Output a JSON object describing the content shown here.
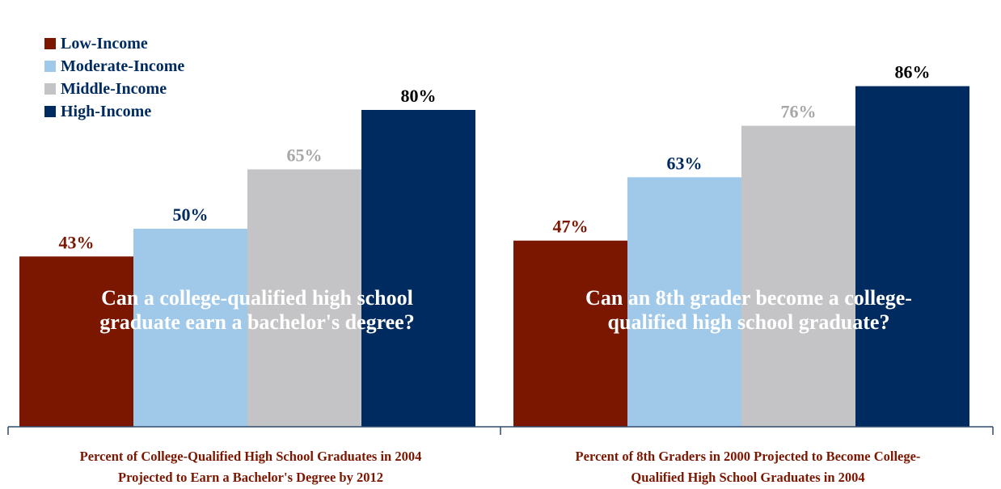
{
  "legend": {
    "entries": [
      {
        "label": "Low-Income",
        "color": "#7B1600"
      },
      {
        "label": "Moderate-Income",
        "color": "#9FC8E9"
      },
      {
        "label": "Middle-Income",
        "color": "#C4C4C6"
      },
      {
        "label": "High-Income",
        "color": "#002B60"
      }
    ]
  },
  "label_colors": [
    "#7B1600",
    "#002B60",
    "#A6A6A6",
    "#000000"
  ],
  "chart_data": [
    {
      "type": "bar",
      "categories": [
        "Low-Income",
        "Moderate-Income",
        "Middle-Income",
        "High-Income"
      ],
      "values": [
        43,
        50,
        65,
        80
      ],
      "data_labels": [
        "43%",
        "50%",
        "65%",
        "80%"
      ],
      "overlay_text_lines": [
        "Can a college-qualified high school",
        "graduate earn a bachelor's degree?"
      ],
      "caption_lines": [
        "Percent of College-Qualified High School Graduates in 2004",
        "Projected to Earn a Bachelor's Degree by 2012"
      ],
      "ylim": [
        0,
        100
      ],
      "grid": false,
      "legend_position": "top-left"
    },
    {
      "type": "bar",
      "categories": [
        "Low-Income",
        "Moderate-Income",
        "Middle-Income",
        "High-Income"
      ],
      "values": [
        47,
        63,
        76,
        86
      ],
      "data_labels": [
        "47%",
        "63%",
        "76%",
        "86%"
      ],
      "overlay_text_lines": [
        "Can an 8th grader become a college-",
        "qualified high school graduate?"
      ],
      "caption_lines": [
        "Percent of 8th Graders in 2000 Projected to Become College-",
        "Qualified High School Graduates in 2004"
      ],
      "ylim": [
        0,
        100
      ],
      "grid": false,
      "legend_position": "top-left"
    }
  ]
}
